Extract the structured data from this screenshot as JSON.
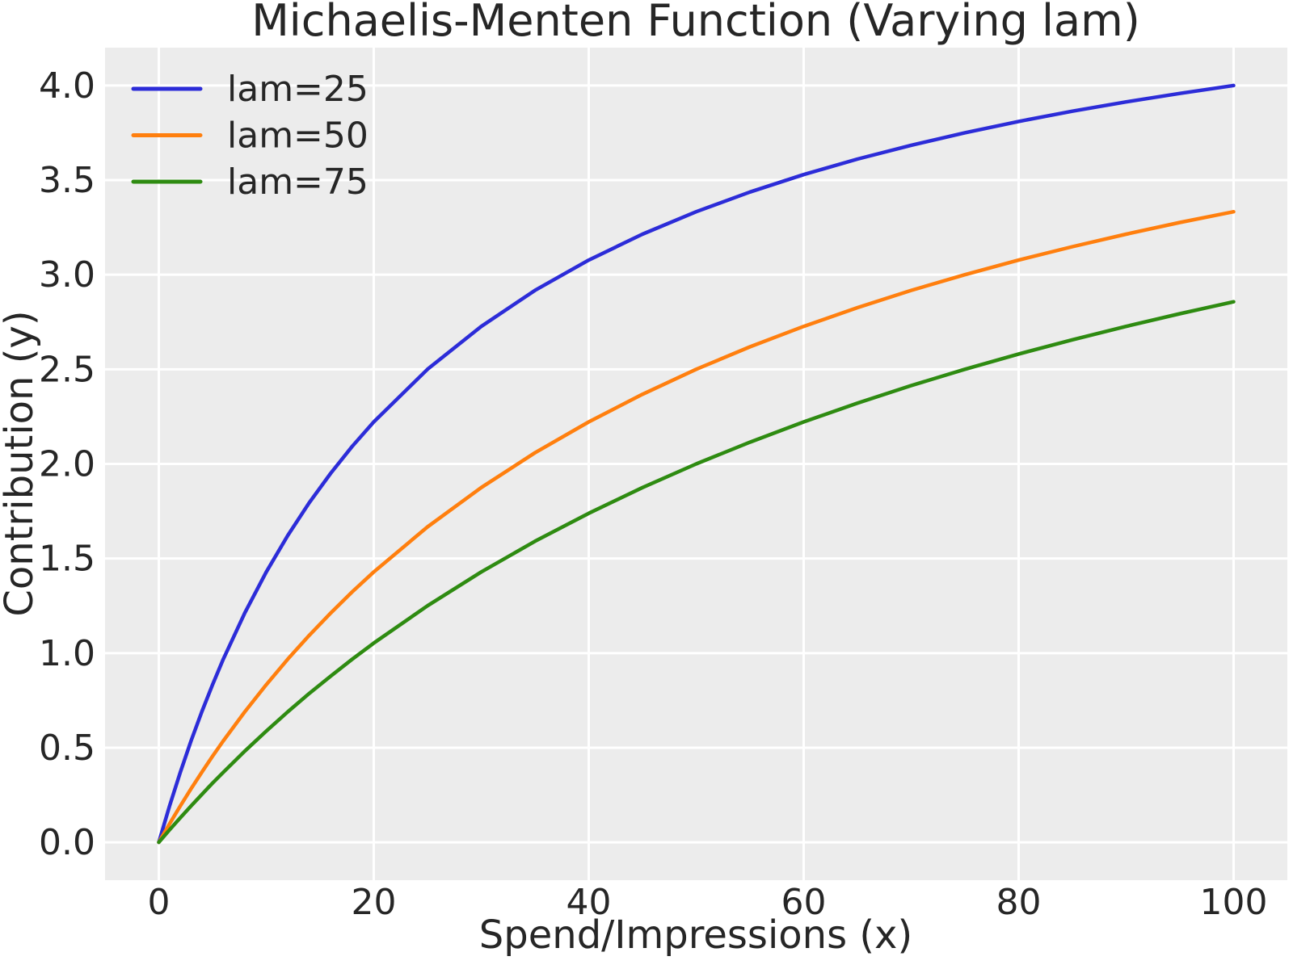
{
  "chart_data": {
    "type": "line",
    "title": "Michaelis-Menten Function (Varying lam)",
    "xlabel": "Spend/Impressions (x)",
    "ylabel": "Contribution (y)",
    "xlim": [
      -5,
      105
    ],
    "ylim": [
      -0.2,
      4.2
    ],
    "xticks": [
      0,
      20,
      40,
      60,
      80,
      100
    ],
    "xtick_labels": [
      "0",
      "20",
      "40",
      "60",
      "80",
      "100"
    ],
    "yticks": [
      0,
      0.5,
      1.0,
      1.5,
      2.0,
      2.5,
      3.0,
      3.5,
      4.0
    ],
    "ytick_labels": [
      "0.0",
      "0.5",
      "1.0",
      "1.5",
      "2.0",
      "2.5",
      "3.0",
      "3.5",
      "4.0"
    ],
    "grid": true,
    "legend_position": "upper left",
    "plot_bg": "#ececec",
    "grid_color": "#ffffff",
    "text_color": "#262626",
    "x": [
      0,
      1,
      2,
      3,
      4,
      5,
      6,
      8,
      10,
      12,
      14,
      16,
      18,
      20,
      25,
      30,
      35,
      40,
      45,
      50,
      55,
      60,
      65,
      70,
      75,
      80,
      85,
      90,
      95,
      100
    ],
    "series": [
      {
        "name": "lam=25",
        "color": "#2c2cd8",
        "values": [
          0,
          0.192,
          0.37,
          0.536,
          0.69,
          0.833,
          0.968,
          1.212,
          1.429,
          1.622,
          1.795,
          1.951,
          2.093,
          2.222,
          2.5,
          2.727,
          2.917,
          3.077,
          3.214,
          3.333,
          3.437,
          3.529,
          3.611,
          3.684,
          3.75,
          3.81,
          3.864,
          3.913,
          3.958,
          4.0
        ]
      },
      {
        "name": "lam=50",
        "color": "#ff7f0e",
        "values": [
          0,
          0.098,
          0.192,
          0.283,
          0.37,
          0.455,
          0.536,
          0.69,
          0.833,
          0.968,
          1.094,
          1.212,
          1.324,
          1.429,
          1.667,
          1.875,
          2.059,
          2.222,
          2.368,
          2.5,
          2.619,
          2.727,
          2.826,
          2.917,
          3.0,
          3.077,
          3.148,
          3.214,
          3.276,
          3.333
        ]
      },
      {
        "name": "lam=75",
        "color": "#2e8b11",
        "values": [
          0,
          0.066,
          0.13,
          0.192,
          0.253,
          0.313,
          0.37,
          0.482,
          0.588,
          0.69,
          0.787,
          0.879,
          0.968,
          1.053,
          1.25,
          1.429,
          1.591,
          1.739,
          1.875,
          2.0,
          2.115,
          2.222,
          2.321,
          2.414,
          2.5,
          2.581,
          2.656,
          2.727,
          2.794,
          2.857
        ]
      }
    ]
  }
}
